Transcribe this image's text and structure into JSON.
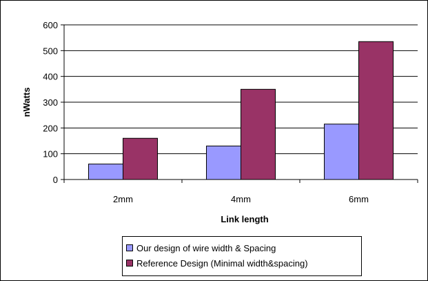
{
  "chart_data": {
    "type": "bar",
    "title": "",
    "xlabel": "Link length",
    "ylabel": "nWatts",
    "categories": [
      "2mm",
      "4mm",
      "6mm"
    ],
    "series": [
      {
        "name": "Our design of wire width & Spacing",
        "values": [
          60,
          130,
          215
        ],
        "color": "#9999ff"
      },
      {
        "name": "Reference Design (Minimal width&spacing)",
        "values": [
          160,
          350,
          535
        ],
        "color": "#993366"
      }
    ],
    "ylim": [
      0,
      600
    ],
    "yticks": [
      0,
      100,
      200,
      300,
      400,
      500,
      600
    ],
    "grid": true,
    "legend_position": "bottom"
  }
}
